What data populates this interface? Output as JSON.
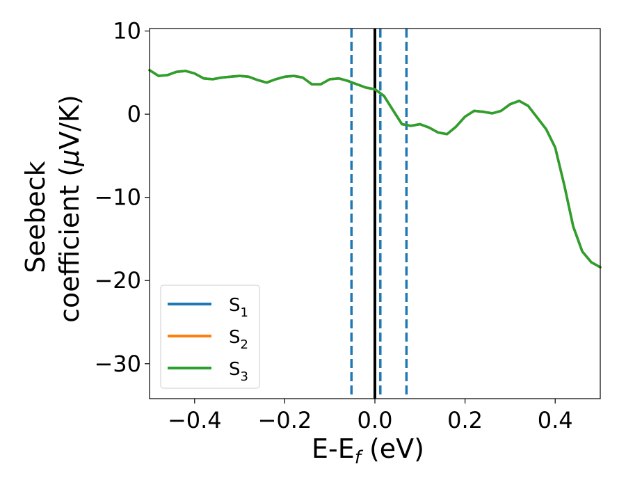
{
  "chart_data": {
    "type": "line",
    "title": "",
    "xlabel": {
      "main": "E-E",
      "sub": "f",
      "unit": " (eV)"
    },
    "ylabel": {
      "line1": "Seebeck",
      "line2": "coefficient  (",
      "mu": "μ",
      "unit": "V/K)"
    },
    "xlim": [
      -0.5,
      0.5
    ],
    "ylim": [
      -34.2,
      10.3
    ],
    "xticks": [
      -0.4,
      -0.2,
      0.0,
      0.2,
      0.4
    ],
    "xtick_labels": [
      "−0.4",
      "−0.2",
      "0.0",
      "0.2",
      "0.4"
    ],
    "yticks": [
      10,
      0,
      -10,
      -20,
      -30
    ],
    "ytick_labels": [
      "10",
      "0",
      "−10",
      "−20",
      "−30"
    ],
    "grid": false,
    "legend_position": "lower-left",
    "x": [
      -0.5,
      -0.48,
      -0.46,
      -0.44,
      -0.42,
      -0.4,
      -0.38,
      -0.36,
      -0.34,
      -0.32,
      -0.3,
      -0.28,
      -0.26,
      -0.24,
      -0.22,
      -0.2,
      -0.18,
      -0.16,
      -0.14,
      -0.12,
      -0.1,
      -0.08,
      -0.06,
      -0.04,
      -0.02,
      0.0,
      0.02,
      0.04,
      0.06,
      0.08,
      0.1,
      0.12,
      0.14,
      0.16,
      0.18,
      0.2,
      0.22,
      0.24,
      0.26,
      0.28,
      0.3,
      0.32,
      0.34,
      0.36,
      0.38,
      0.4,
      0.42,
      0.44,
      0.46,
      0.48,
      0.5
    ],
    "series": [
      {
        "name": "S",
        "sub": "1",
        "color": "#1f77b4",
        "values": [
          5.3,
          4.6,
          4.7,
          5.1,
          5.2,
          4.9,
          4.3,
          4.2,
          4.4,
          4.5,
          4.6,
          4.5,
          4.1,
          3.8,
          4.2,
          4.5,
          4.6,
          4.4,
          3.6,
          3.6,
          4.2,
          4.3,
          4.0,
          3.6,
          3.2,
          3.0,
          2.2,
          0.5,
          -1.2,
          -1.4,
          -1.2,
          -1.6,
          -2.2,
          -2.4,
          -1.5,
          -0.3,
          0.4,
          0.3,
          0.1,
          0.4,
          1.2,
          1.6,
          1.0,
          -0.4,
          -1.8,
          -4.0,
          -8.5,
          -13.5,
          -16.5,
          -17.8,
          -18.4
        ]
      },
      {
        "name": "S",
        "sub": "2",
        "color": "#ff7f0e",
        "values": [
          5.3,
          4.6,
          4.7,
          5.1,
          5.2,
          4.9,
          4.3,
          4.2,
          4.4,
          4.5,
          4.6,
          4.5,
          4.1,
          3.8,
          4.2,
          4.5,
          4.6,
          4.4,
          3.6,
          3.6,
          4.2,
          4.3,
          4.0,
          3.6,
          3.2,
          3.0,
          2.2,
          0.5,
          -1.2,
          -1.4,
          -1.2,
          -1.6,
          -2.2,
          -2.4,
          -1.5,
          -0.3,
          0.4,
          0.3,
          0.1,
          0.4,
          1.2,
          1.6,
          1.0,
          -0.4,
          -1.8,
          -4.0,
          -8.5,
          -13.5,
          -16.5,
          -17.8,
          -18.4
        ]
      },
      {
        "name": "S",
        "sub": "3",
        "color": "#2ca02c",
        "values": [
          5.3,
          4.6,
          4.7,
          5.1,
          5.2,
          4.9,
          4.3,
          4.2,
          4.4,
          4.5,
          4.6,
          4.5,
          4.1,
          3.8,
          4.2,
          4.5,
          4.6,
          4.4,
          3.6,
          3.6,
          4.2,
          4.3,
          4.0,
          3.6,
          3.2,
          3.0,
          2.2,
          0.5,
          -1.2,
          -1.4,
          -1.2,
          -1.6,
          -2.2,
          -2.4,
          -1.5,
          -0.3,
          0.4,
          0.3,
          0.1,
          0.4,
          1.2,
          1.6,
          1.0,
          -0.4,
          -1.8,
          -4.0,
          -8.5,
          -13.5,
          -16.5,
          -17.8,
          -18.4
        ]
      }
    ],
    "vertical_lines": [
      {
        "x": 0.0,
        "style": "solid",
        "color": "#000000"
      },
      {
        "x": -0.052,
        "style": "dashed",
        "color": "#1f77b4"
      },
      {
        "x": 0.012,
        "style": "dashed",
        "color": "#1f77b4"
      },
      {
        "x": 0.07,
        "style": "dashed",
        "color": "#1f77b4"
      }
    ]
  }
}
